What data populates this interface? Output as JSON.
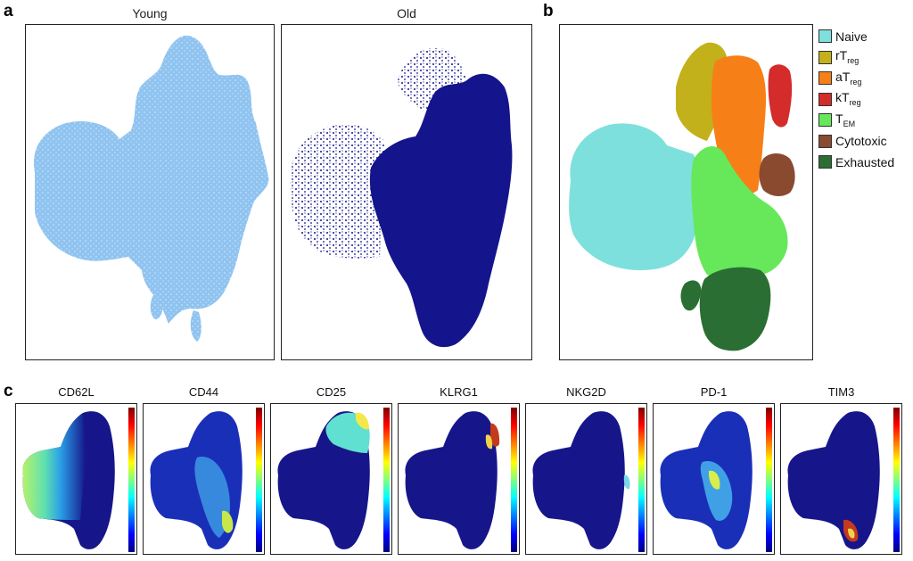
{
  "panel_a": {
    "letter": "a",
    "young_title": "Young",
    "old_title": "Old",
    "young_color": "#8fc3f0",
    "old_color": "#14148c"
  },
  "panel_b": {
    "letter": "b",
    "legend": [
      {
        "main": "Naive",
        "sub": "",
        "color": "#7ee0dc"
      },
      {
        "main": "rT",
        "sub": "reg",
        "color": "#c2b11a"
      },
      {
        "main": "aT",
        "sub": "reg",
        "color": "#f77f17"
      },
      {
        "main": "kT",
        "sub": "reg",
        "color": "#d42b2b"
      },
      {
        "main": "T",
        "sub": "EM",
        "color": "#66e85a"
      },
      {
        "main": "Cytotoxic",
        "sub": "",
        "color": "#8a4a30"
      },
      {
        "main": "Exhausted",
        "sub": "",
        "color": "#2a6e34"
      }
    ]
  },
  "panel_c": {
    "letter": "c",
    "markers": [
      "CD62L",
      "CD44",
      "CD25",
      "KLRG1",
      "NKG2D",
      "PD-1",
      "TIM3"
    ],
    "base_color": "#16168a",
    "colorbar": [
      "#00007f",
      "#0000ff",
      "#00ffff",
      "#ffff00",
      "#ff0000",
      "#7f0000"
    ]
  }
}
